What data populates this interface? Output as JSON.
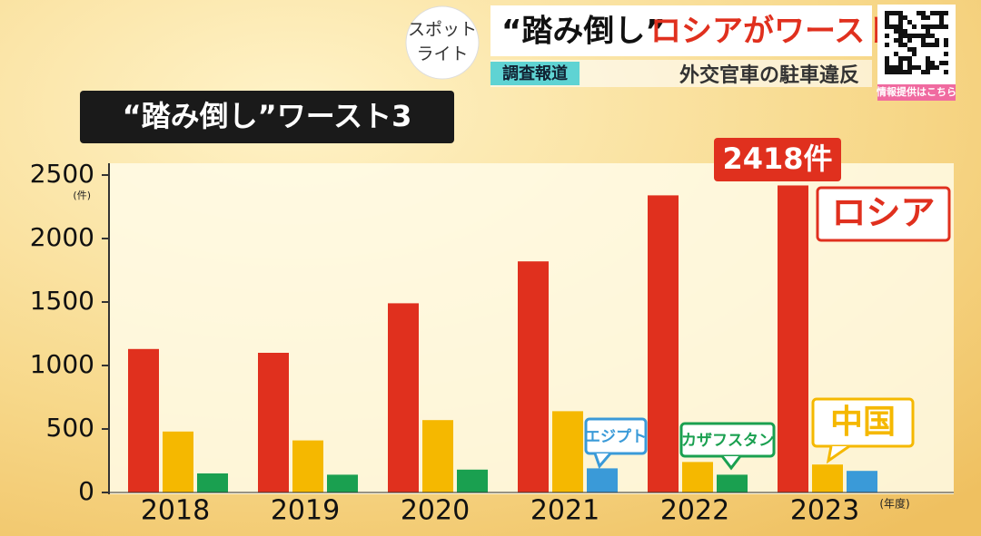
{
  "header": {
    "logo": [
      "スポット",
      "ライト"
    ],
    "title_quote": "“踏み倒し”",
    "title_main": "ロシアがワースト",
    "tag": "調査報道",
    "subtitle": "外交官車の駐車違反",
    "qr_caption": "情報提供はこちら"
  },
  "chart_data": {
    "type": "bar",
    "title": "“踏み倒し”ワースト3",
    "y_unit": "(件)",
    "x_unit": "(年度)",
    "categories": [
      "2018",
      "2019",
      "2020",
      "2021",
      "2022",
      "2023"
    ],
    "series": [
      {
        "name": "ロシア",
        "color": "#e0301e",
        "values": [
          1130,
          1100,
          1490,
          1820,
          2340,
          2418
        ],
        "value_labels": [
          null,
          null,
          null,
          null,
          null,
          "2418件"
        ]
      },
      {
        "name": "中国",
        "color": "#f5b800",
        "values": [
          480,
          410,
          570,
          640,
          240,
          220
        ]
      },
      {
        "name": "カザフスタン",
        "color": "#1aa050",
        "values": [
          150,
          140,
          180,
          null,
          140,
          null
        ]
      },
      {
        "name": "エジプト",
        "color": "#3a9ad8",
        "values": [
          null,
          null,
          null,
          190,
          null,
          170
        ]
      }
    ],
    "ylim": [
      0,
      2500
    ],
    "yticks": [
      0,
      500,
      1000,
      1500,
      2000,
      2500
    ]
  }
}
